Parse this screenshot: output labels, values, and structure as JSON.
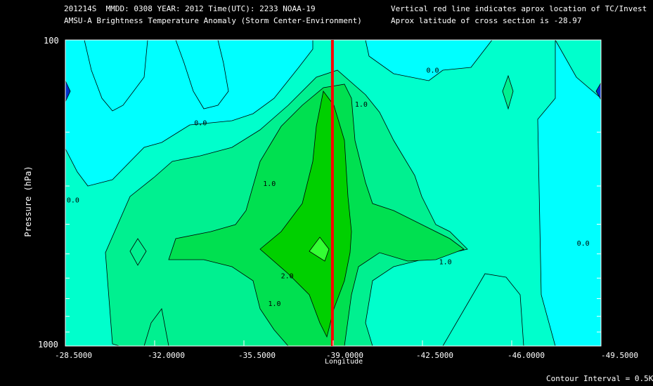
{
  "header": {
    "line1_left": "201214S  MMDD: 0308 YEAR: 2012 Time(UTC): 2233 NOAA-19",
    "line2_left": "AMSU-A Brightness Temperature Anomaly (Storm Center-Environment)",
    "line1_right": "Vertical red line indicates aprox location of TC/Invest",
    "line2_right": "Aprox latitude of cross section is -28.97"
  },
  "footer": {
    "contour_interval": "Contour Interval = 0.5K"
  },
  "chart_data": {
    "type": "heatmap",
    "title": "AMSU-A Brightness Temperature Anomaly (Storm Center-Environment)",
    "xlabel": "Longitude",
    "ylabel": "Pressure (hPa)",
    "xlim": [
      -28.5,
      -49.5
    ],
    "ylim": [
      1000,
      100
    ],
    "y_scale": "log",
    "x_ticks": [
      "-28.5000",
      "-32.0000",
      "-35.5000",
      "-39.0000",
      "-42.5000",
      "-46.0000",
      "-49.5000"
    ],
    "y_ticks": [
      "100",
      "1000"
    ],
    "contour_labels": [
      {
        "text": "0.0",
        "lon": -33.8,
        "p": 190
      },
      {
        "text": "1.0",
        "lon": -36.5,
        "p": 300
      },
      {
        "text": "1.0",
        "lon": -40.1,
        "p": 165
      },
      {
        "text": "0.0",
        "lon": -42.9,
        "p": 128
      },
      {
        "text": "0.0",
        "lon": -28.8,
        "p": 340
      },
      {
        "text": "2.0",
        "lon": -37.2,
        "p": 600
      },
      {
        "text": "1.0",
        "lon": -43.4,
        "p": 540
      },
      {
        "text": "1.0",
        "lon": -36.7,
        "p": 740
      },
      {
        "text": "0.0",
        "lon": -48.8,
        "p": 470
      }
    ],
    "storm_longitude": -38.97,
    "storm_line_color": "#ff0000",
    "level_colors": {
      "-1.0": "#0033cc",
      "-0.5": "#00ccff",
      "0.0": "#00ffff",
      "0.5": "#00ffcc",
      "1.0": "#00f090",
      "1.5": "#00e050",
      "2.0": "#00d000",
      "2.5": "#33ff33"
    }
  }
}
